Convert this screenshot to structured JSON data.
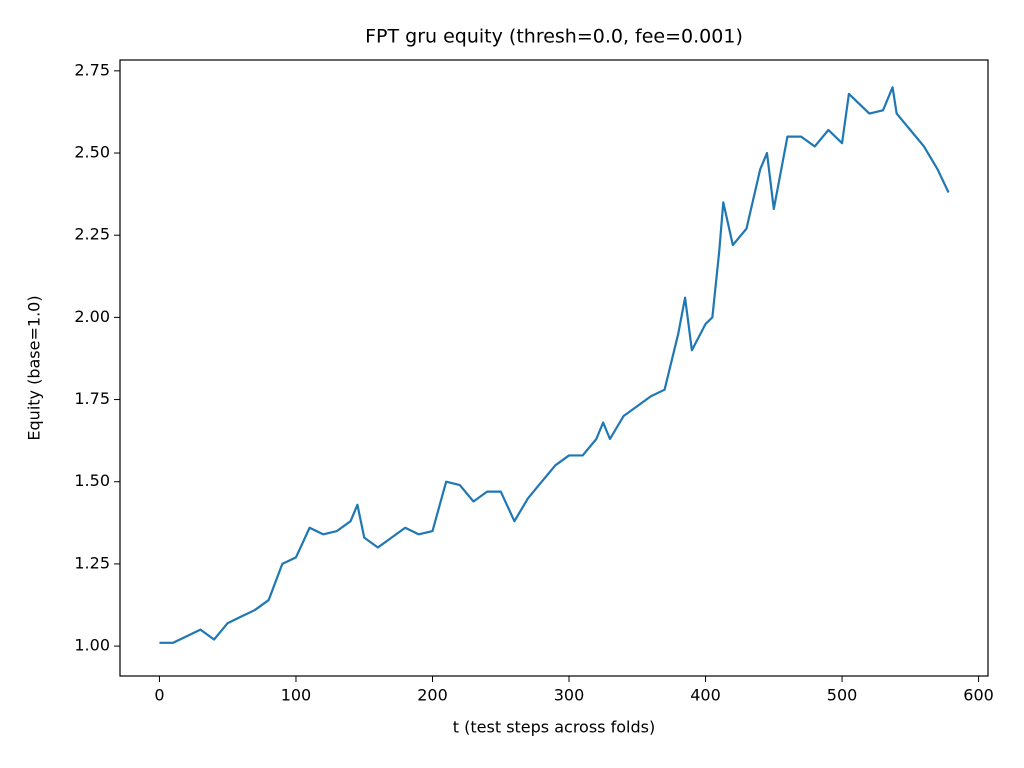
{
  "chart_data": {
    "type": "line",
    "title": "FPT gru equity (thresh=0.0, fee=0.001)",
    "x_label": "t (test steps across folds)",
    "y_label": "Equity (base=1.0)",
    "x": [
      0,
      10,
      20,
      30,
      40,
      50,
      60,
      70,
      80,
      90,
      100,
      110,
      120,
      130,
      140,
      145,
      150,
      160,
      170,
      180,
      190,
      200,
      210,
      220,
      230,
      240,
      250,
      260,
      270,
      280,
      290,
      300,
      310,
      320,
      325,
      330,
      340,
      350,
      360,
      370,
      380,
      385,
      390,
      400,
      405,
      410,
      413,
      420,
      430,
      440,
      445,
      450,
      460,
      470,
      480,
      490,
      500,
      505,
      510,
      520,
      530,
      537,
      540,
      550,
      560,
      570,
      578
    ],
    "series": [
      {
        "color": "#1f77b4",
        "values": [
          1.01,
          1.01,
          1.03,
          1.05,
          1.02,
          1.07,
          1.09,
          1.11,
          1.14,
          1.25,
          1.27,
          1.36,
          1.34,
          1.35,
          1.38,
          1.43,
          1.33,
          1.3,
          1.33,
          1.36,
          1.34,
          1.35,
          1.5,
          1.49,
          1.44,
          1.47,
          1.47,
          1.38,
          1.45,
          1.5,
          1.55,
          1.58,
          1.58,
          1.63,
          1.68,
          1.63,
          1.7,
          1.73,
          1.76,
          1.78,
          1.95,
          2.06,
          1.9,
          1.98,
          2.0,
          2.2,
          2.35,
          2.22,
          2.27,
          2.45,
          2.5,
          2.33,
          2.55,
          2.55,
          2.52,
          2.57,
          2.53,
          2.68,
          2.66,
          2.62,
          2.63,
          2.7,
          2.62,
          2.57,
          2.52,
          2.45,
          2.38
        ]
      }
    ],
    "xlim": [
      -28.9,
      606.9
    ],
    "ylim": [
      0.909,
      2.783
    ],
    "xticks": [
      0,
      100,
      200,
      300,
      400,
      500,
      600
    ],
    "yticks": [
      {
        "value": 1,
        "label": "1.00"
      },
      1.25,
      {
        "value": 1.5,
        "label": "1.50"
      },
      1.75,
      {
        "value": 2,
        "label": "2.00"
      },
      2.25,
      {
        "value": 2.5,
        "label": "2.50"
      },
      2.75
    ],
    "grid": false
  }
}
